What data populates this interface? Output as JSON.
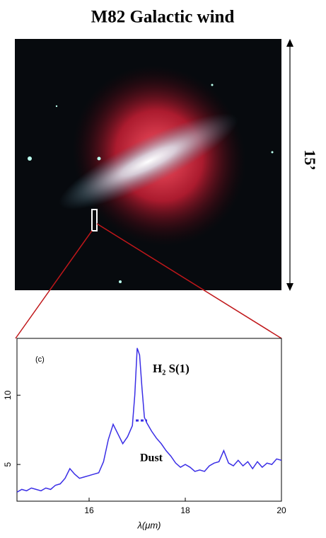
{
  "header": {
    "title": "M82 Galactic wind",
    "scale_label": "15’"
  },
  "chart_data": {
    "type": "line",
    "x": [
      14.5,
      14.6,
      14.7,
      14.8,
      14.9,
      15.0,
      15.1,
      15.2,
      15.3,
      15.4,
      15.5,
      15.6,
      15.7,
      15.8,
      15.9,
      16.0,
      16.1,
      16.2,
      16.3,
      16.4,
      16.5,
      16.6,
      16.7,
      16.8,
      16.9,
      16.95,
      17.0,
      17.05,
      17.1,
      17.15,
      17.2,
      17.3,
      17.4,
      17.5,
      17.6,
      17.7,
      17.8,
      17.9,
      18.0,
      18.1,
      18.2,
      18.3,
      18.4,
      18.5,
      18.6,
      18.7,
      18.8,
      18.9,
      19.0,
      19.1,
      19.2,
      19.3,
      19.4,
      19.5,
      19.6,
      19.7,
      19.8,
      19.9,
      20.0
    ],
    "series": [
      {
        "color": "#3a2ee6",
        "values": [
          3.0,
          3.2,
          3.1,
          3.3,
          3.2,
          3.1,
          3.3,
          3.2,
          3.5,
          3.6,
          4.0,
          4.7,
          4.3,
          4.0,
          4.1,
          4.2,
          4.3,
          4.4,
          5.2,
          6.8,
          7.9,
          7.2,
          6.5,
          7.0,
          7.8,
          10.0,
          13.4,
          12.9,
          10.5,
          8.4,
          8.0,
          7.4,
          6.9,
          6.5,
          6.0,
          5.6,
          5.1,
          4.8,
          5.0,
          4.8,
          4.5,
          4.6,
          4.5,
          4.9,
          5.1,
          5.2,
          6.0,
          5.1,
          4.9,
          5.3,
          4.9,
          5.2,
          4.7,
          5.2,
          4.8,
          5.1,
          5.0,
          5.4,
          5.3
        ]
      }
    ],
    "xlim": [
      14.5,
      20
    ],
    "ylim": [
      2.35,
      14.1
    ],
    "xticks": [
      16,
      18,
      20
    ],
    "yticks": [
      5,
      10
    ],
    "x_label": "λ(μm)",
    "annotations": [
      "(c)",
      "H₂ S(1)",
      "Dust"
    ]
  }
}
